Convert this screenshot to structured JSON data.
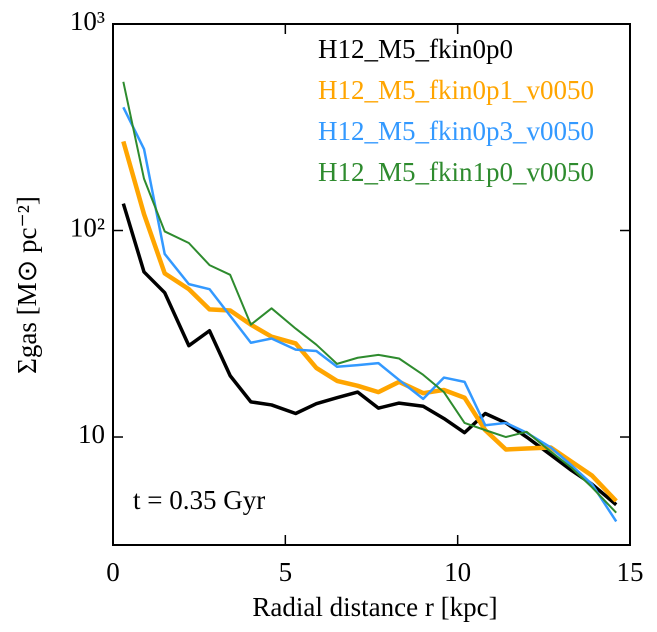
{
  "chart_data": {
    "type": "line",
    "xlabel": "Radial distance r [kpc]",
    "ylabel": "Σgas [M⊙ pc⁻²]",
    "annotation": "t = 0.35 Gyr",
    "x": [
      0.3,
      0.9,
      1.5,
      2.2,
      2.8,
      3.4,
      4.0,
      4.6,
      5.3,
      5.9,
      6.5,
      7.1,
      7.7,
      8.3,
      9.0,
      9.6,
      10.2,
      10.8,
      11.4,
      12.0,
      12.7,
      13.3,
      13.9,
      14.6
    ],
    "series": [
      {
        "name": "H12_M5_fkin0p0",
        "color": "#000000",
        "values": [
          135,
          63,
          50,
          27.7,
          32.7,
          19.8,
          14.8,
          14.3,
          13,
          14.5,
          15.5,
          16.5,
          13.8,
          14.6,
          14.1,
          12.3,
          10.5,
          13,
          11.7,
          10,
          8.2,
          6.9,
          5.9,
          4.7
        ]
      },
      {
        "name": "H12_M5_fkin0p1_v0050",
        "color": "#ffa500",
        "values": [
          270,
          120,
          62,
          52,
          41.5,
          41,
          35,
          30.6,
          28.4,
          21.6,
          18.7,
          17.7,
          16.5,
          18.5,
          16.3,
          16.9,
          15.5,
          10.8,
          8.7,
          8.8,
          8.9,
          7.6,
          6.5,
          4.9
        ]
      },
      {
        "name": "H12_M5_fkin0p3_v0050",
        "color": "#3399ff",
        "values": [
          395,
          248,
          77,
          55,
          52,
          38.6,
          28.6,
          30,
          26.5,
          26.1,
          21.9,
          22.3,
          22.8,
          18.9,
          15.3,
          19.4,
          18.5,
          11.4,
          11.7,
          10.5,
          8.9,
          7.3,
          5.9,
          3.9
        ]
      },
      {
        "name": "H12_M5_fkin1p0_v0050",
        "color": "#2e8b2e",
        "values": [
          525,
          178,
          99,
          87,
          68,
          61,
          35,
          42,
          33.5,
          28,
          22.6,
          24.2,
          25,
          24,
          20,
          16.5,
          11.7,
          10.8,
          10,
          10.6,
          8.5,
          7.1,
          5.7,
          4.3
        ]
      }
    ],
    "xlim": [
      0,
      15
    ],
    "xticks": [
      0,
      5,
      10,
      15
    ],
    "ylim": [
      3,
      1000
    ],
    "ylog": true,
    "yticks": [
      10,
      {
        "value": 100,
        "label": "10²"
      },
      {
        "value": 1000,
        "label": "10³"
      }
    ],
    "legend": "upper right"
  }
}
